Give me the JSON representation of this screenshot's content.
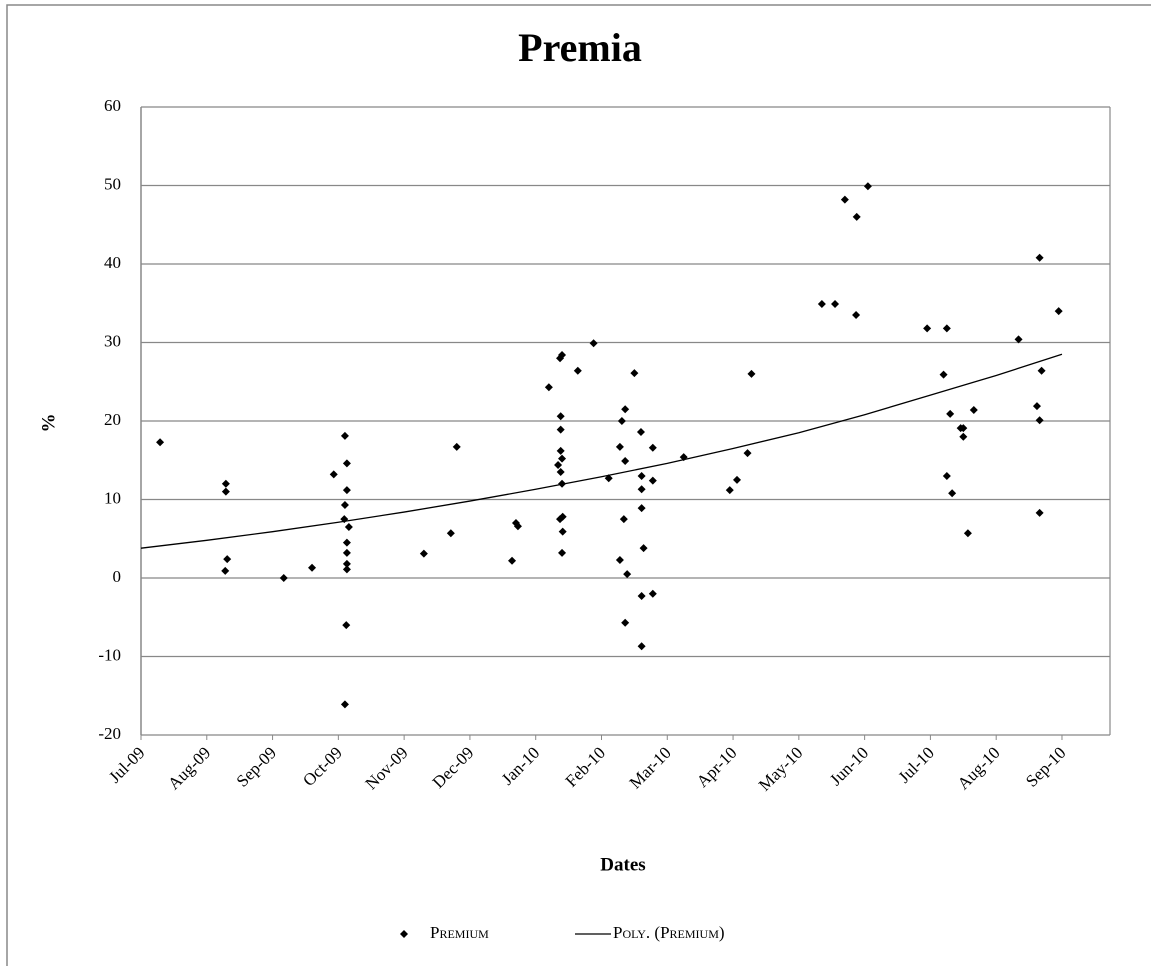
{
  "chart_data": {
    "type": "scatter",
    "title": "Premia",
    "x_label": "Dates",
    "y_label": "%",
    "xlim": [
      0,
      14.73
    ],
    "xticks": [
      {
        "value": 0,
        "label": "Jul-09"
      },
      {
        "value": 1,
        "label": "Aug-09"
      },
      {
        "value": 2,
        "label": "Sep-09"
      },
      {
        "value": 3,
        "label": "Oct-09"
      },
      {
        "value": 4,
        "label": "Nov-09"
      },
      {
        "value": 5,
        "label": "Dec-09"
      },
      {
        "value": 6,
        "label": "Jan-10"
      },
      {
        "value": 7,
        "label": "Feb-10"
      },
      {
        "value": 8,
        "label": "Mar-10"
      },
      {
        "value": 9,
        "label": "Apr-10"
      },
      {
        "value": 10,
        "label": "May-10"
      },
      {
        "value": 11,
        "label": "Jun-10"
      },
      {
        "value": 12,
        "label": "Jul-10"
      },
      {
        "value": 13,
        "label": "Aug-10"
      },
      {
        "value": 14,
        "label": "Sep-10"
      }
    ],
    "ylim": [
      -20,
      60
    ],
    "yticks": [
      -20,
      -10,
      0,
      10,
      20,
      30,
      40,
      50,
      60
    ],
    "grid": true,
    "legend": "bottom",
    "series": [
      {
        "name": "Premium",
        "color": "#000000",
        "x": [
          0.29,
          1.29,
          1.29,
          1.31,
          1.28,
          2.17,
          2.6,
          2.93,
          3.1,
          3.13,
          3.13,
          3.1,
          3.09,
          3.16,
          3.13,
          3.13,
          3.13,
          3.13,
          3.12,
          3.1,
          4.3,
          4.71,
          4.8,
          5.64,
          5.7,
          5.73,
          6.2,
          6.37,
          6.4,
          6.38,
          6.38,
          6.38,
          6.4,
          6.34,
          6.38,
          6.4,
          6.41,
          6.37,
          6.41,
          6.4,
          6.64,
          6.88,
          7.11,
          7.28,
          7.31,
          7.36,
          7.36,
          7.34,
          7.28,
          7.39,
          7.36,
          7.5,
          7.6,
          7.61,
          7.61,
          7.61,
          7.64,
          7.61,
          7.61,
          7.78,
          7.78,
          7.78,
          8.25,
          8.95,
          9.06,
          9.22,
          9.28,
          10.35,
          10.55,
          10.7,
          10.88,
          10.87,
          11.05,
          11.95,
          12.2,
          12.25,
          12.3,
          12.25,
          12.33,
          12.46,
          12.5,
          12.5,
          12.57,
          12.66,
          13.34,
          13.66,
          13.62,
          13.69,
          13.66,
          13.66,
          13.95
        ],
        "values": [
          17.3,
          12.0,
          11.0,
          2.4,
          0.9,
          0,
          1.3,
          13.2,
          18.1,
          14.6,
          11.2,
          9.3,
          7.5,
          6.5,
          4.5,
          3.2,
          1.8,
          1.1,
          -6.0,
          -16.1,
          3.1,
          5.7,
          16.7,
          2.2,
          7.0,
          6.6,
          24.3,
          28.0,
          28.4,
          20.6,
          18.9,
          16.2,
          15.2,
          14.4,
          13.5,
          12.0,
          7.8,
          7.5,
          5.9,
          3.2,
          26.4,
          29.9,
          12.7,
          16.7,
          20.0,
          21.5,
          14.9,
          7.5,
          2.3,
          0.5,
          -5.7,
          26.1,
          18.6,
          13.0,
          11.3,
          8.9,
          3.8,
          -2.3,
          -8.7,
          16.6,
          12.4,
          -2.0,
          15.4,
          11.2,
          12.5,
          15.9,
          26.0,
          34.9,
          34.9,
          48.2,
          46.0,
          33.5,
          49.9,
          31.8,
          25.9,
          31.8,
          20.9,
          13.0,
          10.8,
          19.1,
          19.1,
          18.0,
          5.7,
          21.4,
          30.4,
          40.8,
          21.9,
          26.4,
          20.1,
          8.3,
          34.0
        ]
      },
      {
        "name": "Poly. (Premium)",
        "color": "#000000",
        "type": "line",
        "x": [
          0,
          1,
          2,
          3,
          4,
          5,
          6,
          7,
          8,
          9,
          10,
          11,
          12,
          13,
          14
        ],
        "values": [
          3.8,
          4.8,
          5.9,
          7.1,
          8.4,
          9.8,
          11.3,
          12.9,
          14.6,
          16.5,
          18.5,
          20.8,
          23.3,
          25.8,
          28.5
        ]
      }
    ]
  }
}
